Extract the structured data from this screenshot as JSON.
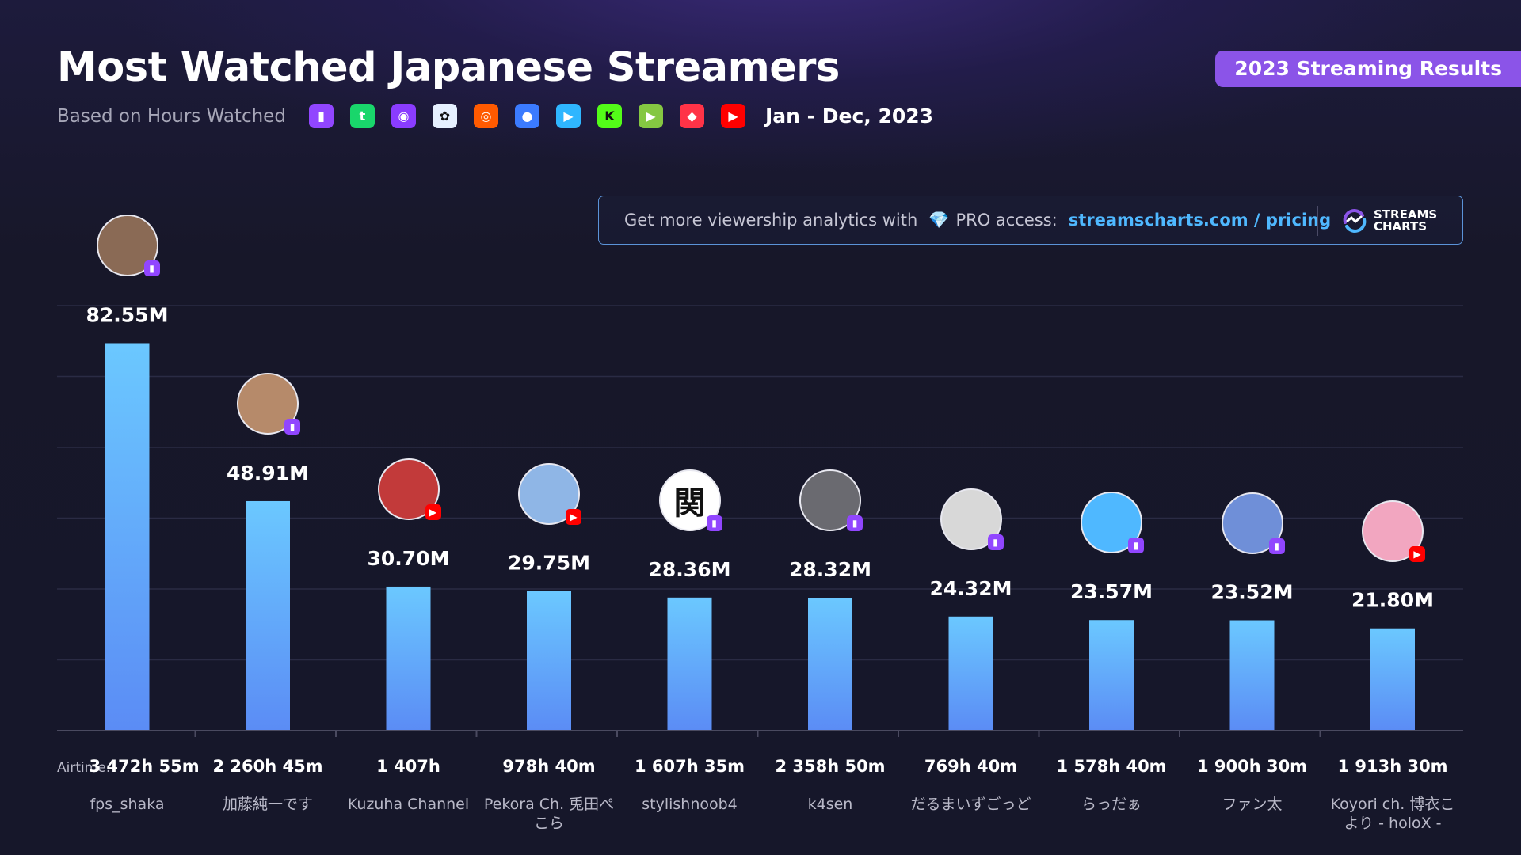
{
  "header": {
    "title": "Most Watched Japanese Streamers",
    "subtitle": "Based on Hours Watched",
    "badge": "2023 Streaming Results",
    "period": "Jan - Dec, 2023"
  },
  "platforms": [
    {
      "icon": "twitch-icon",
      "color": "#9146ff",
      "glyph": "▮"
    },
    {
      "icon": "trovo-icon",
      "color": "#19d66b",
      "glyph": "t"
    },
    {
      "icon": "bilibili-icon",
      "color": "#8a3cff",
      "glyph": "◉"
    },
    {
      "icon": "ghost-icon",
      "color": "#e6f0ff",
      "glyph": "✿"
    },
    {
      "icon": "afreeca-icon",
      "color": "#ff5a00",
      "glyph": "◎"
    },
    {
      "icon": "openrec-icon",
      "color": "#3b7bff",
      "glyph": "●"
    },
    {
      "icon": "nimo-icon",
      "color": "#2fb6ff",
      "glyph": "▶"
    },
    {
      "icon": "kick-icon",
      "color": "#53fc18",
      "glyph": "K"
    },
    {
      "icon": "rumble-icon",
      "color": "#85c742",
      "glyph": "▶"
    },
    {
      "icon": "vk-play-icon",
      "color": "#ff3347",
      "glyph": "◆"
    },
    {
      "icon": "youtube-icon",
      "color": "#ff0000",
      "glyph": "▶"
    }
  ],
  "promo": {
    "text": "Get more viewership analytics with",
    "gem": "💎",
    "pro": "PRO access:",
    "link": "streamscharts.com / pricing",
    "brand_line1": "STREAMS",
    "brand_line2": "CHARTS"
  },
  "airtime_prefix": "Airtime:",
  "colors": {
    "bar_top": "#6bc8ff",
    "bar_bottom": "#5b8cf5",
    "twitch": "#9146ff",
    "youtube": "#ff0000"
  },
  "chart_data": {
    "type": "bar",
    "title": "Most Watched Japanese Streamers",
    "ylim": [
      0,
      100
    ],
    "grid": true,
    "categories": [
      "fps_shaka",
      "加藤純一です",
      "Kuzuha Channel",
      "Pekora Ch. 兎田ぺこら",
      "stylishnoob4",
      "k4sen",
      "だるまいずごっど",
      "らっだぁ",
      "ファン太",
      "Koyori ch. 博衣こより - holoX -"
    ],
    "values": [
      82.55,
      48.91,
      30.7,
      29.75,
      28.36,
      28.32,
      24.32,
      23.57,
      23.52,
      21.8
    ],
    "value_labels": [
      "82.55M",
      "48.91M",
      "30.70M",
      "29.75M",
      "28.36M",
      "28.32M",
      "24.32M",
      "23.57M",
      "23.52M",
      "21.80M"
    ],
    "airtime": [
      "3 472h 55m",
      "2 260h 45m",
      "1 407h",
      "978h 40m",
      "1 607h 35m",
      "2 358h 50m",
      "769h 40m",
      "1 578h 40m",
      "1 900h 30m",
      "1 913h 30m"
    ],
    "platform": [
      "twitch",
      "twitch",
      "youtube",
      "youtube",
      "twitch",
      "twitch",
      "twitch",
      "twitch",
      "twitch",
      "youtube"
    ],
    "avatar_glyph": [
      "",
      "",
      "",
      "",
      "関",
      "",
      "",
      "",
      "",
      ""
    ],
    "avatar_color": [
      "#8a6a55",
      "#b68a6a",
      "#c23a3a",
      "#8fb6e6",
      "#ffffff",
      "#6a6a70",
      "#d8d8d8",
      "#4fb8ff",
      "#6f8fd8",
      "#f2a6c0"
    ]
  }
}
